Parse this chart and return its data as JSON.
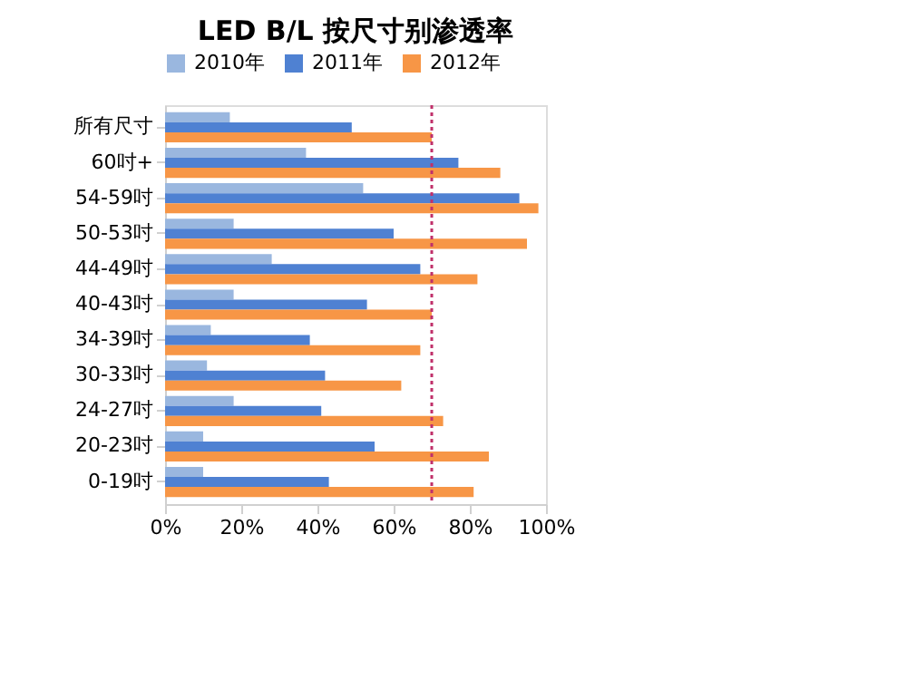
{
  "chart_data": {
    "type": "bar",
    "orientation": "horizontal",
    "title": "LED B/L 按尺寸别渗透率",
    "categories": [
      "所有尺寸",
      "60吋+",
      "54-59吋",
      "50-53吋",
      "44-49吋",
      "40-43吋",
      "34-39吋",
      "30-33吋",
      "24-27吋",
      "20-23吋",
      "0-19吋"
    ],
    "series": [
      {
        "name": "2010年",
        "color": "#9ab7df",
        "values": [
          17,
          37,
          52,
          18,
          28,
          18,
          12,
          11,
          18,
          10,
          10
        ]
      },
      {
        "name": "2011年",
        "color": "#4f81d2",
        "values": [
          49,
          77,
          93,
          60,
          67,
          53,
          38,
          42,
          41,
          55,
          43
        ]
      },
      {
        "name": "2012年",
        "color": "#f79646",
        "values": [
          70,
          88,
          98,
          95,
          82,
          70,
          67,
          62,
          73,
          85,
          81
        ]
      }
    ],
    "xlim": [
      0,
      100
    ],
    "xticks": [
      {
        "value": 0,
        "label": "0%"
      },
      {
        "value": 20,
        "label": "20%"
      },
      {
        "value": 40,
        "label": "40%"
      },
      {
        "value": 60,
        "label": "60%"
      },
      {
        "value": 80,
        "label": "80%"
      },
      {
        "value": 100,
        "label": "100%"
      }
    ],
    "ref_lines": [
      {
        "axis": "x",
        "value": 70,
        "color": "#c0306a",
        "line_style": "dotted"
      }
    ],
    "legend": "top",
    "grid": false
  }
}
